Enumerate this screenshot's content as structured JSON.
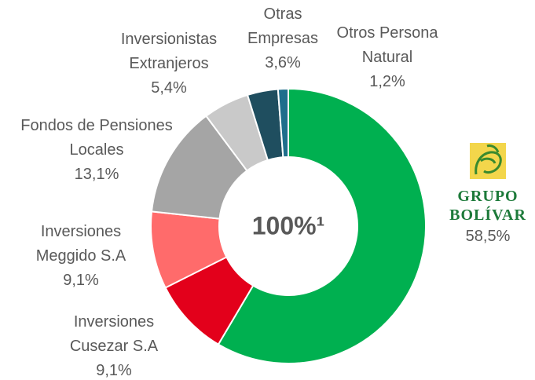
{
  "chart_data": {
    "type": "donut",
    "center_label": "100%¹",
    "categories": [
      "GRUPO BOLÍVAR",
      "Inversiones Cusezar S.A",
      "Inversiones Meggido S.A",
      "Fondos de Pensiones Locales",
      "Inversionistas Extranjeros",
      "Otras Empresas",
      "Otros Persona Natural"
    ],
    "values": [
      58.5,
      9.1,
      9.1,
      13.1,
      5.4,
      3.6,
      1.2
    ],
    "value_labels": [
      "58,5%",
      "9,1%",
      "9,1%",
      "13,1%",
      "5,4%",
      "3,6%",
      "1,2%"
    ],
    "colors": [
      "#00b050",
      "#e3001b",
      "#ff6b6b",
      "#a5a5a5",
      "#c9c9c9",
      "#1f4e5f",
      "#1f6e8c"
    ]
  }
}
